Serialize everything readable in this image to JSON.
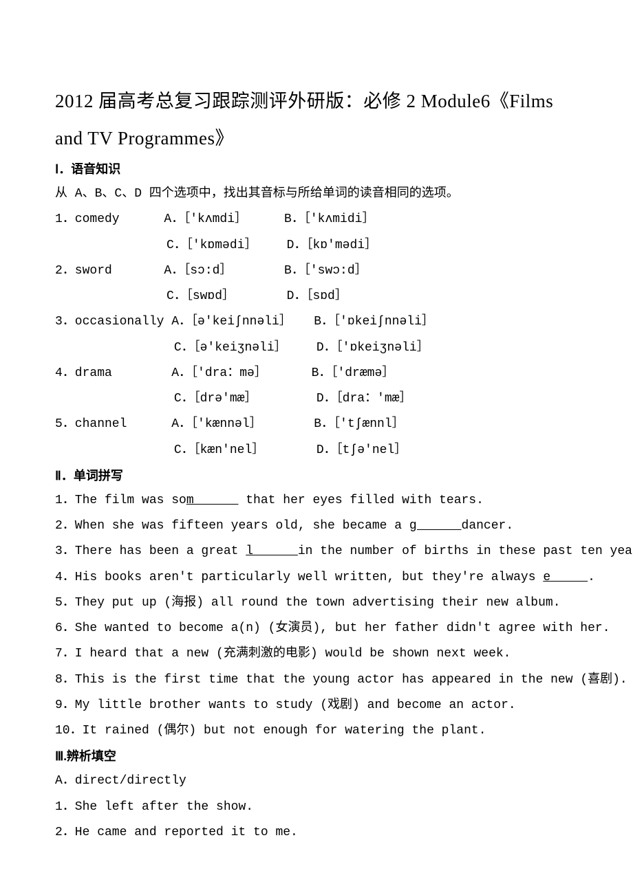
{
  "title_line1": "2012 届高考总复习跟踪测评外研版：必修 2 Module6《Films",
  "title_line2": "and TV Programmes》",
  "section1": {
    "heading": "Ⅰ．语音知识",
    "instruction": "从 A、B、C、D 四个选项中，找出其音标与所给单词的读音相同的选项。",
    "rows": [
      "1．comedy      A．［'kʌmdi］     B．［'kʌmidi］",
      "               C．［'kɒmədi］    D．［kɒ'mədi］",
      "2．sword       A．［sɔ:d］       B．［'swɔ:d］",
      "               C．［swɒd］       D．［sɒd］",
      "3．occasionally A．［ə'keiʃnnəli］   B．［'ɒkeiʃnnəli］",
      "                C．［ə'keiʒnəli］    D．［'ɒkeiʒnəli］",
      "4．drama        A．［'dra：mə］      B．［'dræmə］",
      "                C．［drə'mæ］        D．［dra：'mæ］",
      "5．channel      A．［'kænnəl］       B．［'tʃænnl］",
      "                C．［kæn'nel］       D．［tʃə'nel］"
    ]
  },
  "section2": {
    "heading": "Ⅱ．单词拼写",
    "items": [
      {
        "pre": "1．The film was so",
        "u": "m      ",
        "post": " that her eyes filled with tears."
      },
      {
        "pre": "2．When she was fifteen years old, she became a ",
        "u": "g      ",
        "post": "dancer."
      },
      {
        "pre": "3．There has been a great ",
        "u": "l      ",
        "post": "in the number of births in these past ten years."
      },
      {
        "pre": "4．His books aren't particularly well written, but they're always ",
        "u": "e     ",
        "post": "."
      },
      {
        "pre": "5．They put up (海报) all round the town advertising their new album.",
        "u": "",
        "post": ""
      },
      {
        "pre": "6．She wanted to become a(n) (女演员), but her father didn't agree with her.",
        "u": "",
        "post": ""
      },
      {
        "pre": "7．I heard that a new (充满刺激的电影) would be shown next week.",
        "u": "",
        "post": ""
      },
      {
        "pre": "8．This is the first time that the young actor has appeared in the new (喜剧).",
        "u": "",
        "post": ""
      },
      {
        "pre": "9．My little brother wants to study (戏剧) and become an actor.",
        "u": "",
        "post": ""
      },
      {
        "pre": "10．It rained (偶尔) but not enough for watering the plant.",
        "u": "",
        "post": ""
      }
    ]
  },
  "section3": {
    "heading": "Ⅲ.辨析填空",
    "lines": [
      "A．direct/directly",
      "1．She left after the show.",
      "2．He came and reported it to me."
    ]
  },
  "colors": {
    "background": "#ffffff",
    "text": "#000000"
  },
  "typography": {
    "title_fontsize": 27,
    "heading_fontsize": 18,
    "body_fontsize": 18,
    "line_height": 2.07,
    "font_family": "SimSun"
  }
}
